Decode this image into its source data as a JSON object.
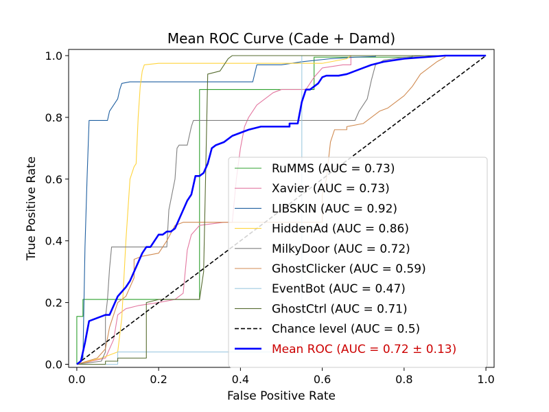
{
  "chart_data": {
    "type": "line",
    "title": "Mean ROC Curve (Cade + Damd)",
    "xlabel": "False Positive Rate",
    "ylabel": "True Positive Rate",
    "xlim": [
      -0.02,
      1.02
    ],
    "ylim": [
      -0.01,
      1.02
    ],
    "xticks": [
      {
        "value": 0.0,
        "label": "0.0"
      },
      {
        "value": 0.2,
        "label": "0.2"
      },
      {
        "value": 0.4,
        "label": "0.4"
      },
      {
        "value": 0.6,
        "label": "0.6"
      },
      {
        "value": 0.8,
        "label": "0.8"
      },
      {
        "value": 1.0,
        "label": "1.0"
      }
    ],
    "yticks": [
      {
        "value": 0.0,
        "label": "0.0"
      },
      {
        "value": 0.2,
        "label": "0.2"
      },
      {
        "value": 0.4,
        "label": "0.4"
      },
      {
        "value": 0.6,
        "label": "0.6"
      },
      {
        "value": 0.8,
        "label": "0.8"
      },
      {
        "value": 1.0,
        "label": "1.0"
      }
    ],
    "grid": false,
    "legend_position": "lower-right",
    "series": [
      {
        "name": "RuMMS",
        "label": "RuMMS (AUC = 0.73)",
        "color": "#2ca02c",
        "style": "solid",
        "weight": "thin",
        "points": [
          [
            0,
            0
          ],
          [
            0,
            0.155
          ],
          [
            0.015,
            0.155
          ],
          [
            0.015,
            0.21
          ],
          [
            0.3,
            0.21
          ],
          [
            0.3,
            0.24
          ],
          [
            0.3,
            0.89
          ],
          [
            0.56,
            0.89
          ],
          [
            0.58,
            0.89
          ],
          [
            0.58,
            0.995
          ],
          [
            0.82,
            0.995
          ],
          [
            0.82,
            1.0
          ],
          [
            1.0,
            1.0
          ]
        ]
      },
      {
        "name": "Xavier",
        "label": "Xavier (AUC = 0.73)",
        "color": "#e377a0",
        "style": "solid",
        "weight": "thin",
        "points": [
          [
            0,
            0
          ],
          [
            0.07,
            0.02
          ],
          [
            0.09,
            0.08
          ],
          [
            0.1,
            0.16
          ],
          [
            0.12,
            0.18
          ],
          [
            0.15,
            0.19
          ],
          [
            0.2,
            0.2
          ],
          [
            0.24,
            0.21
          ],
          [
            0.26,
            0.23
          ],
          [
            0.265,
            0.3
          ],
          [
            0.27,
            0.37
          ],
          [
            0.28,
            0.42
          ],
          [
            0.3,
            0.45
          ],
          [
            0.36,
            0.46
          ],
          [
            0.38,
            0.46
          ],
          [
            0.39,
            0.6
          ],
          [
            0.4,
            0.7
          ],
          [
            0.41,
            0.77
          ],
          [
            0.42,
            0.8
          ],
          [
            0.44,
            0.84
          ],
          [
            0.46,
            0.86
          ],
          [
            0.48,
            0.88
          ],
          [
            0.5,
            0.89
          ],
          [
            0.55,
            0.89
          ],
          [
            0.56,
            0.89
          ],
          [
            0.58,
            0.93
          ],
          [
            0.6,
            0.96
          ],
          [
            0.65,
            0.97
          ],
          [
            0.67,
            0.97
          ],
          [
            0.67,
            1.0
          ],
          [
            1.0,
            1.0
          ]
        ]
      },
      {
        "name": "LIBSKIN",
        "label": "LIBSKIN (AUC = 0.92)",
        "color": "#1f5fa0",
        "style": "solid",
        "weight": "thin",
        "points": [
          [
            0,
            0
          ],
          [
            0.015,
            0.02
          ],
          [
            0.02,
            0.38
          ],
          [
            0.025,
            0.6
          ],
          [
            0.03,
            0.79
          ],
          [
            0.04,
            0.79
          ],
          [
            0.045,
            0.79
          ],
          [
            0.075,
            0.79
          ],
          [
            0.08,
            0.82
          ],
          [
            0.09,
            0.84
          ],
          [
            0.1,
            0.86
          ],
          [
            0.105,
            0.89
          ],
          [
            0.11,
            0.91
          ],
          [
            0.13,
            0.915
          ],
          [
            0.43,
            0.915
          ],
          [
            0.44,
            0.97
          ],
          [
            0.5,
            0.97
          ],
          [
            0.55,
            0.98
          ],
          [
            0.62,
            0.99
          ],
          [
            0.68,
            0.995
          ],
          [
            0.73,
            0.997
          ],
          [
            0.73,
            1.0
          ],
          [
            1.0,
            1.0
          ]
        ]
      },
      {
        "name": "HiddenAd",
        "label": "HiddenAd (AUC = 0.86)",
        "color": "#ffd43b",
        "style": "solid",
        "weight": "thin",
        "points": [
          [
            0,
            0
          ],
          [
            0.06,
            0.02
          ],
          [
            0.1,
            0.04
          ],
          [
            0.11,
            0.15
          ],
          [
            0.12,
            0.4
          ],
          [
            0.125,
            0.5
          ],
          [
            0.13,
            0.6
          ],
          [
            0.14,
            0.64
          ],
          [
            0.145,
            0.65
          ],
          [
            0.15,
            0.8
          ],
          [
            0.155,
            0.9
          ],
          [
            0.16,
            0.95
          ],
          [
            0.165,
            0.97
          ],
          [
            0.2,
            0.975
          ],
          [
            0.5,
            0.975
          ],
          [
            0.55,
            0.975
          ],
          [
            0.6,
            0.975
          ],
          [
            0.66,
            0.99
          ],
          [
            0.67,
            1.0
          ],
          [
            1.0,
            1.0
          ]
        ]
      },
      {
        "name": "MilkyDoor",
        "label": "MilkyDoor (AUC = 0.72)",
        "color": "#7f7f7f",
        "style": "solid",
        "weight": "thin",
        "points": [
          [
            0,
            0
          ],
          [
            0.06,
            0.01
          ],
          [
            0.07,
            0.04
          ],
          [
            0.07,
            0.15
          ],
          [
            0.075,
            0.21
          ],
          [
            0.08,
            0.31
          ],
          [
            0.085,
            0.38
          ],
          [
            0.15,
            0.38
          ],
          [
            0.22,
            0.38
          ],
          [
            0.225,
            0.5
          ],
          [
            0.24,
            0.6
          ],
          [
            0.245,
            0.7
          ],
          [
            0.25,
            0.71
          ],
          [
            0.27,
            0.71
          ],
          [
            0.28,
            0.77
          ],
          [
            0.285,
            0.79
          ],
          [
            0.34,
            0.79
          ],
          [
            0.5,
            0.79
          ],
          [
            0.68,
            0.79
          ],
          [
            0.69,
            0.82
          ],
          [
            0.7,
            0.84
          ],
          [
            0.71,
            0.86
          ],
          [
            0.72,
            0.92
          ],
          [
            0.73,
            0.97
          ],
          [
            0.75,
            0.985
          ],
          [
            0.8,
            0.995
          ],
          [
            0.85,
            1.0
          ],
          [
            1.0,
            1.0
          ]
        ]
      },
      {
        "name": "GhostClicker",
        "label": "GhostClicker (AUC = 0.59)",
        "color": "#d08a50",
        "style": "solid",
        "weight": "thin",
        "points": [
          [
            0,
            0
          ],
          [
            0.05,
            0.02
          ],
          [
            0.07,
            0.05
          ],
          [
            0.08,
            0.12
          ],
          [
            0.1,
            0.2
          ],
          [
            0.12,
            0.22
          ],
          [
            0.14,
            0.28
          ],
          [
            0.14,
            0.34
          ],
          [
            0.16,
            0.35
          ],
          [
            0.2,
            0.36
          ],
          [
            0.22,
            0.4
          ],
          [
            0.24,
            0.45
          ],
          [
            0.26,
            0.46
          ],
          [
            0.6,
            0.46
          ],
          [
            0.6,
            0.55
          ],
          [
            0.61,
            0.6
          ],
          [
            0.62,
            0.72
          ],
          [
            0.63,
            0.76
          ],
          [
            0.64,
            0.76
          ],
          [
            0.66,
            0.76
          ],
          [
            0.66,
            0.77
          ],
          [
            0.7,
            0.78
          ],
          [
            0.72,
            0.8
          ],
          [
            0.73,
            0.81
          ],
          [
            0.74,
            0.82
          ],
          [
            0.76,
            0.83
          ],
          [
            0.78,
            0.85
          ],
          [
            0.8,
            0.87
          ],
          [
            0.82,
            0.9
          ],
          [
            0.84,
            0.94
          ],
          [
            0.86,
            0.96
          ],
          [
            0.88,
            0.98
          ],
          [
            0.9,
            0.995
          ],
          [
            0.9,
            1.0
          ],
          [
            1.0,
            1.0
          ]
        ]
      },
      {
        "name": "EventBot",
        "label": "EventBot (AUC = 0.47)",
        "color": "#9ecae1",
        "style": "solid",
        "weight": "thin",
        "points": [
          [
            0,
            0
          ],
          [
            0.1,
            0
          ],
          [
            0.1,
            0.04
          ],
          [
            0.54,
            0.04
          ],
          [
            0.55,
            0.04
          ],
          [
            0.55,
            1.0
          ],
          [
            1.0,
            1.0
          ]
        ]
      },
      {
        "name": "GhostCtrl",
        "label": "GhostCtrl (AUC = 0.71)",
        "color": "#556b2f",
        "style": "solid",
        "weight": "thin",
        "points": [
          [
            0,
            0
          ],
          [
            0.07,
            0
          ],
          [
            0.07,
            0.01
          ],
          [
            0.09,
            0.01
          ],
          [
            0.1,
            0.01
          ],
          [
            0.1,
            0.02
          ],
          [
            0.17,
            0.02
          ],
          [
            0.17,
            0.2
          ],
          [
            0.2,
            0.21
          ],
          [
            0.3,
            0.21
          ],
          [
            0.31,
            0.3
          ],
          [
            0.32,
            0.94
          ],
          [
            0.35,
            0.95
          ],
          [
            0.36,
            0.97
          ],
          [
            0.37,
            0.99
          ],
          [
            0.38,
            1.0
          ],
          [
            1.0,
            1.0
          ]
        ]
      },
      {
        "name": "Chance level",
        "label": "Chance level (AUC = 0.5)",
        "color": "#000000",
        "style": "dashed",
        "weight": "medium",
        "points": [
          [
            0,
            0
          ],
          [
            1,
            1
          ]
        ]
      },
      {
        "name": "Mean ROC",
        "label": "Mean ROC (AUC = 0.72 ± 0.13)",
        "color": "#0000ff",
        "style": "solid",
        "weight": "thick",
        "label_color": "#cc0000",
        "points": [
          [
            0,
            0
          ],
          [
            0.01,
            0.01
          ],
          [
            0.02,
            0.07
          ],
          [
            0.03,
            0.14
          ],
          [
            0.05,
            0.15
          ],
          [
            0.07,
            0.16
          ],
          [
            0.08,
            0.16
          ],
          [
            0.09,
            0.19
          ],
          [
            0.1,
            0.22
          ],
          [
            0.12,
            0.25
          ],
          [
            0.13,
            0.27
          ],
          [
            0.14,
            0.3
          ],
          [
            0.15,
            0.33
          ],
          [
            0.16,
            0.36
          ],
          [
            0.17,
            0.38
          ],
          [
            0.18,
            0.38
          ],
          [
            0.19,
            0.4
          ],
          [
            0.2,
            0.42
          ],
          [
            0.21,
            0.42
          ],
          [
            0.22,
            0.43
          ],
          [
            0.23,
            0.43
          ],
          [
            0.24,
            0.44
          ],
          [
            0.25,
            0.47
          ],
          [
            0.26,
            0.5
          ],
          [
            0.27,
            0.53
          ],
          [
            0.28,
            0.55
          ],
          [
            0.29,
            0.61
          ],
          [
            0.3,
            0.61
          ],
          [
            0.31,
            0.62
          ],
          [
            0.32,
            0.65
          ],
          [
            0.33,
            0.7
          ],
          [
            0.34,
            0.71
          ],
          [
            0.36,
            0.72
          ],
          [
            0.38,
            0.74
          ],
          [
            0.4,
            0.75
          ],
          [
            0.42,
            0.76
          ],
          [
            0.45,
            0.77
          ],
          [
            0.47,
            0.77
          ],
          [
            0.52,
            0.77
          ],
          [
            0.52,
            0.78
          ],
          [
            0.54,
            0.78
          ],
          [
            0.55,
            0.85
          ],
          [
            0.56,
            0.89
          ],
          [
            0.57,
            0.89
          ],
          [
            0.58,
            0.9
          ],
          [
            0.59,
            0.91
          ],
          [
            0.6,
            0.93
          ],
          [
            0.61,
            0.935
          ],
          [
            0.64,
            0.935
          ],
          [
            0.66,
            0.94
          ],
          [
            0.68,
            0.95
          ],
          [
            0.7,
            0.96
          ],
          [
            0.72,
            0.97
          ],
          [
            0.75,
            0.98
          ],
          [
            0.8,
            0.99
          ],
          [
            0.85,
            0.995
          ],
          [
            0.9,
            1.0
          ],
          [
            1.0,
            1.0
          ]
        ]
      }
    ]
  }
}
